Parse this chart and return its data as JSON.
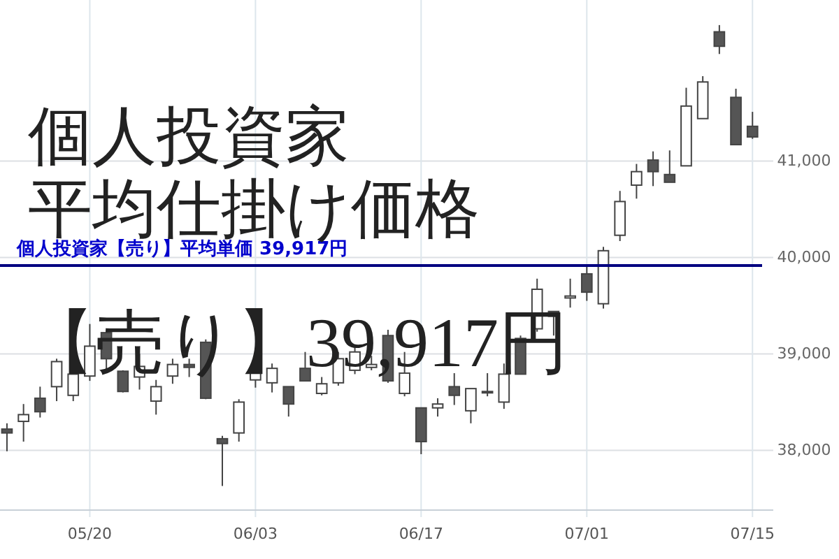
{
  "chart_data": {
    "type": "candlestick",
    "title": "個人投資家",
    "subtitle": "平均仕掛け価格",
    "annotations": [
      "【売り】39,917円"
    ],
    "categories": [
      null,
      null,
      null,
      null,
      null,
      "05/20",
      null,
      null,
      null,
      null,
      null,
      null,
      null,
      null,
      null,
      "06/03",
      null,
      null,
      null,
      null,
      null,
      null,
      null,
      null,
      null,
      "06/17",
      null,
      null,
      null,
      null,
      null,
      null,
      null,
      null,
      null,
      "07/01",
      null,
      null,
      null,
      null,
      null,
      null,
      null,
      null,
      null,
      "07/15"
    ],
    "ohlc": [
      [
        38220,
        38280,
        37990,
        38180
      ],
      [
        38300,
        38480,
        38090,
        38370
      ],
      [
        38540,
        38660,
        38340,
        38400
      ],
      [
        38660,
        38950,
        38510,
        38920
      ],
      [
        38570,
        38850,
        38510,
        38790
      ],
      [
        38770,
        39310,
        38720,
        39080
      ],
      [
        39220,
        39250,
        38840,
        38950
      ],
      [
        38820,
        38830,
        38600,
        38610
      ],
      [
        38760,
        39000,
        38630,
        38870
      ],
      [
        38510,
        38730,
        38370,
        38660
      ],
      [
        38770,
        38950,
        38690,
        38890
      ],
      [
        38890,
        38950,
        38760,
        38860
      ],
      [
        39120,
        39150,
        38530,
        38540
      ],
      [
        38120,
        38150,
        37630,
        38070
      ],
      [
        38180,
        38530,
        38090,
        38500
      ],
      [
        38730,
        38900,
        38650,
        38800
      ],
      [
        38700,
        38900,
        38600,
        38850
      ],
      [
        38660,
        38660,
        38350,
        38480
      ],
      [
        38850,
        39020,
        38720,
        38720
      ],
      [
        38590,
        38760,
        38570,
        38690
      ],
      [
        38700,
        39020,
        38670,
        38950
      ],
      [
        38830,
        39090,
        38790,
        39020
      ],
      [
        38860,
        38980,
        38830,
        38890
      ],
      [
        39190,
        39250,
        38700,
        38720
      ],
      [
        38590,
        39020,
        38560,
        38800
      ],
      [
        38440,
        38440,
        37960,
        38090
      ],
      [
        38440,
        38540,
        38350,
        38480
      ],
      [
        38660,
        38800,
        38470,
        38570
      ],
      [
        38410,
        38640,
        38280,
        38640
      ],
      [
        38600,
        38800,
        38560,
        38610
      ],
      [
        38500,
        38900,
        38430,
        38790
      ],
      [
        39160,
        39190,
        38790,
        38790
      ],
      [
        39260,
        39780,
        39230,
        39670
      ],
      [
        39440,
        39440,
        39190,
        39390
      ],
      [
        39580,
        39780,
        39480,
        39600
      ],
      [
        39830,
        39930,
        39550,
        39640
      ],
      [
        39520,
        40110,
        39470,
        40070
      ],
      [
        40230,
        40690,
        40170,
        40580
      ],
      [
        40750,
        40970,
        40610,
        40890
      ],
      [
        41010,
        41100,
        40740,
        40890
      ],
      [
        40860,
        41110,
        40780,
        40780
      ],
      [
        40950,
        41760,
        40950,
        41570
      ],
      [
        41440,
        41880,
        41440,
        41820
      ],
      [
        42340,
        42410,
        42110,
        42190
      ],
      [
        41660,
        41750,
        41170,
        41170
      ],
      [
        41360,
        41510,
        41230,
        41250
      ]
    ],
    "ylim": [
      37380,
      42670
    ],
    "yticks": [
      {
        "value": 38000,
        "label": "38,000"
      },
      {
        "value": 39000,
        "label": "39,000"
      },
      {
        "value": 40000,
        "label": "40,000"
      },
      {
        "value": 41000,
        "label": "41,000"
      }
    ],
    "grid": true,
    "ref_lines": [
      {
        "axis": "y",
        "value": 39917,
        "label": "個人投資家【売り】平均単価 39,917円",
        "color": "#000080"
      }
    ]
  }
}
